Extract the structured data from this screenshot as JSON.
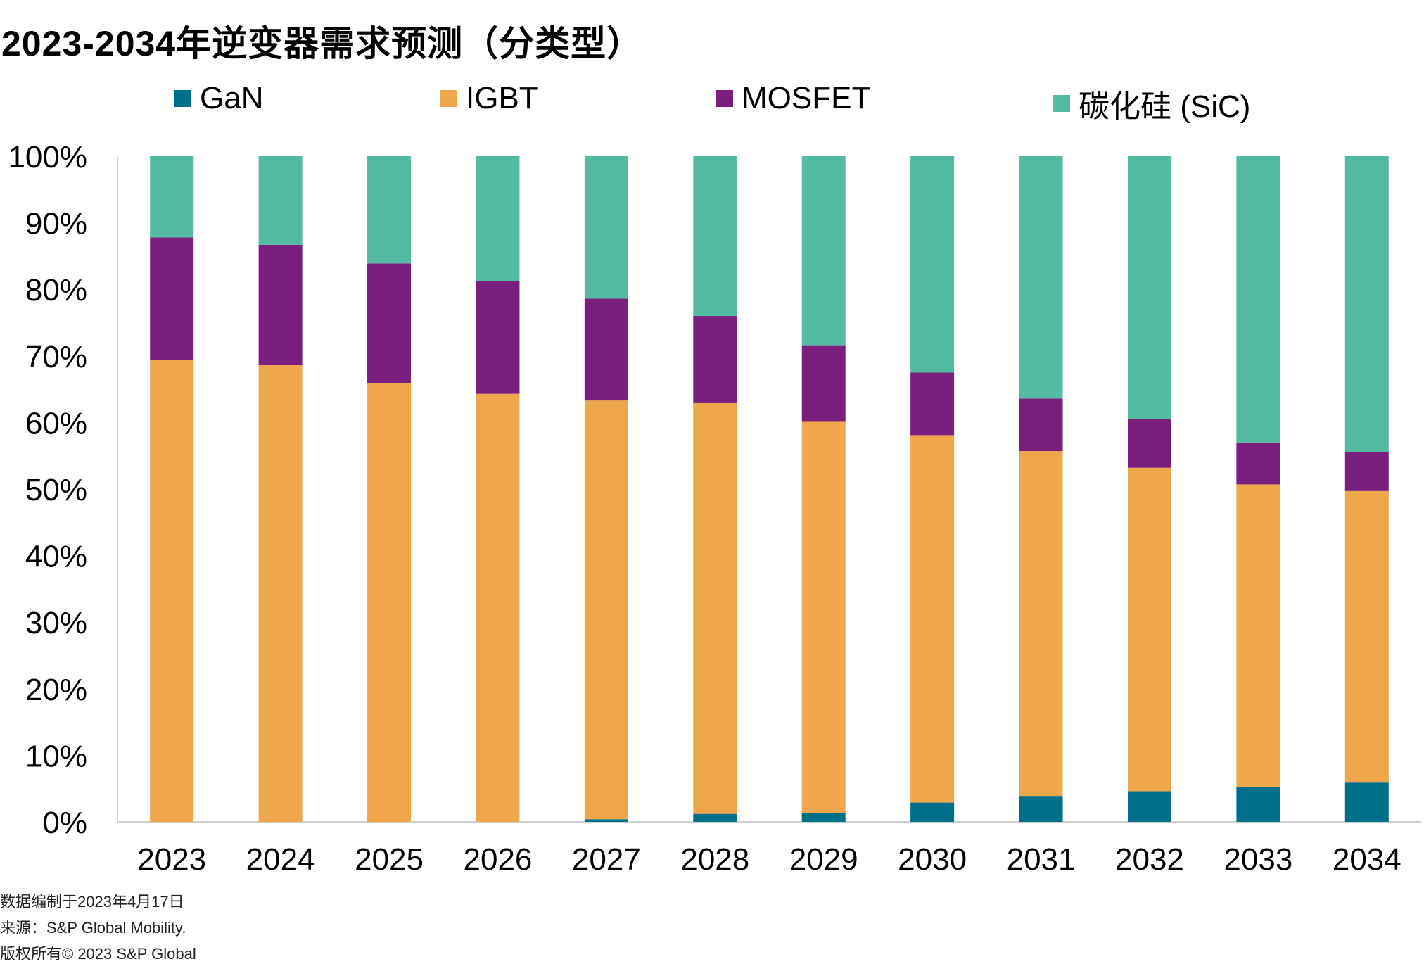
{
  "title": "2023-2034年逆变器需求预测（分类型）",
  "footer": {
    "line1": "数据编制于2023年4月17日",
    "line2": "来源：S&P Global Mobility.",
    "line3": "版权所有© 2023 S&P Global"
  },
  "chart_data": {
    "type": "bar",
    "stacked": true,
    "title": "2023-2034年逆变器需求预测（分类型）",
    "xlabel": "",
    "ylabel": "",
    "ylim": [
      0,
      100
    ],
    "y_ticks": [
      "0%",
      "10%",
      "20%",
      "30%",
      "40%",
      "50%",
      "60%",
      "70%",
      "80%",
      "90%",
      "100%"
    ],
    "legend_position": "top",
    "grid": false,
    "categories": [
      "2023",
      "2024",
      "2025",
      "2026",
      "2027",
      "2028",
      "2029",
      "2030",
      "2031",
      "2032",
      "2033",
      "2034"
    ],
    "series": [
      {
        "name": "GaN",
        "color": "#006f8a",
        "values": [
          0,
          0,
          0,
          0,
          0.4,
          1.2,
          1.3,
          2.9,
          3.9,
          4.6,
          5.2,
          5.9
        ]
      },
      {
        "name": "IGBT",
        "color": "#f0a64a",
        "values": [
          69.4,
          68.6,
          65.9,
          64.3,
          62.9,
          61.7,
          58.8,
          55.2,
          51.8,
          48.6,
          45.5,
          43.8
        ]
      },
      {
        "name": "MOSFET",
        "color": "#7b1f7f",
        "values": [
          18.4,
          18.1,
          18.0,
          16.9,
          15.3,
          13.1,
          11.4,
          9.4,
          7.9,
          7.3,
          6.3,
          5.8
        ]
      },
      {
        "name": "碳化硅 (SiC)",
        "color": "#54bba3",
        "values": [
          12.2,
          13.3,
          16.1,
          18.8,
          21.4,
          24.0,
          28.5,
          32.5,
          36.4,
          39.5,
          43.0,
          44.5
        ]
      }
    ]
  }
}
